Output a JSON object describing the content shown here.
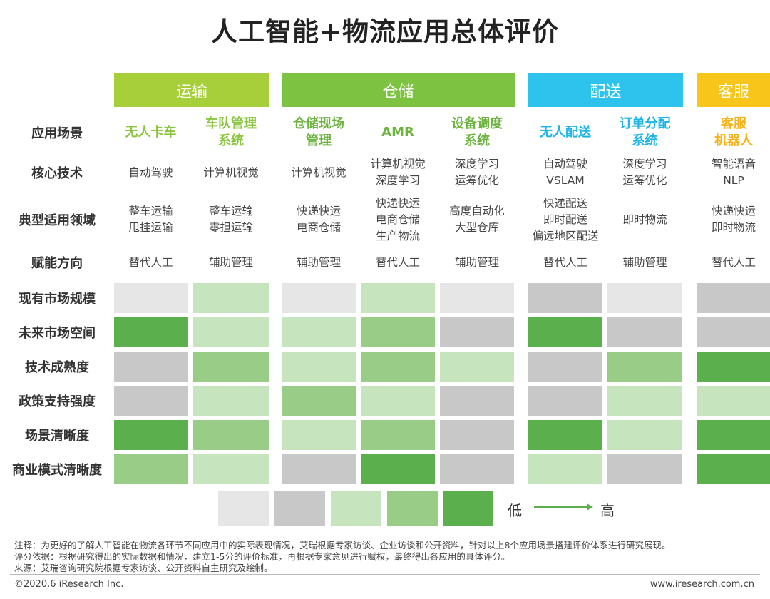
{
  "title": "人工智能+物流应用总体评价",
  "groups": [
    {
      "label": "运输",
      "color": "#a6cf3a"
    },
    {
      "label": "仓储",
      "color": "#7dc241"
    },
    {
      "label": "配送",
      "color": "#2dc3ec"
    },
    {
      "label": "客服",
      "color": "#f8c51a"
    }
  ],
  "row_labels": {
    "scenario": "应用场景",
    "tech": "核心技术",
    "domain": "典型适用领域",
    "direction": "赋能方向"
  },
  "scenarios": [
    {
      "name": [
        "无人卡车"
      ],
      "tech": [
        "自动驾驶"
      ],
      "domain": [
        "整车运输",
        "甩挂运输"
      ],
      "direction": "替代人工",
      "color": "#8bc53f"
    },
    {
      "name": [
        "车队管理",
        "系统"
      ],
      "tech": [
        "计算机视觉"
      ],
      "domain": [
        "整车运输",
        "零担运输"
      ],
      "direction": "辅助管理",
      "color": "#8bc53f"
    },
    {
      "name": [
        "仓储现场",
        "管理"
      ],
      "tech": [
        "计算机视觉"
      ],
      "domain": [
        "快递快运",
        "电商仓储"
      ],
      "direction": "辅助管理",
      "color": "#6cb33f"
    },
    {
      "name": [
        "AMR"
      ],
      "tech": [
        "计算机视觉",
        "深度学习"
      ],
      "domain": [
        "快递快运",
        "电商仓储",
        "生产物流"
      ],
      "direction": "替代人工",
      "color": "#6cb33f"
    },
    {
      "name": [
        "设备调度",
        "系统"
      ],
      "tech": [
        "深度学习",
        "运筹优化"
      ],
      "domain": [
        "高度自动化",
        "大型仓库"
      ],
      "direction": "辅助管理",
      "color": "#6cb33f"
    },
    {
      "name": [
        "无人配送"
      ],
      "tech": [
        "自动驾驶",
        "VSLAM"
      ],
      "domain": [
        "快递配送",
        "即时配送",
        "偏远地区配送"
      ],
      "direction": "替代人工",
      "color": "#1db4e6"
    },
    {
      "name": [
        "订单分配",
        "系统"
      ],
      "tech": [
        "深度学习",
        "运筹优化"
      ],
      "domain": [
        "即时物流"
      ],
      "direction": "辅助管理",
      "color": "#1db4e6"
    },
    {
      "name": [
        "客服",
        "机器人"
      ],
      "tech": [
        "智能语音",
        "NLP"
      ],
      "domain": [
        "快递快运",
        "即时物流"
      ],
      "direction": "替代人工",
      "color": "#f5b31a"
    }
  ],
  "chart_data": {
    "type": "heatmap",
    "title": "人工智能+物流应用总体评价",
    "columns": [
      "无人卡车",
      "车队管理系统",
      "仓储现场管理",
      "AMR",
      "设备调度系统",
      "无人配送",
      "订单分配系统",
      "客服机器人"
    ],
    "rows": [
      "现有市场规模",
      "未来市场空间",
      "技术成熟度",
      "政策支持强度",
      "场景清晰度",
      "商业模式清晰度"
    ],
    "values": [
      [
        1,
        3,
        1,
        3,
        1,
        2,
        1,
        2
      ],
      [
        5,
        3,
        3,
        4,
        2,
        5,
        2,
        2
      ],
      [
        2,
        4,
        3,
        4,
        3,
        2,
        4,
        5
      ],
      [
        2,
        3,
        4,
        3,
        2,
        2,
        3,
        3
      ],
      [
        5,
        4,
        3,
        4,
        2,
        5,
        3,
        5
      ],
      [
        4,
        3,
        2,
        5,
        2,
        3,
        2,
        5
      ]
    ],
    "scale": [
      1,
      5
    ],
    "palette": [
      "#e6e6e6",
      "#c8c8c8",
      "#c6e5bf",
      "#99cc86",
      "#5bb04d"
    ],
    "legend": {
      "low": "低",
      "high": "高"
    }
  },
  "notes": [
    "注释：为更好的了解人工智能在物流各环节不同应用中的实际表现情况，艾瑞根据专家访谈、企业访谈和公开资料，针对以上8个应用场景搭建评价体系进行研究展现。",
    "评分依据：根据研究得出的实际数据和情况，建立1-5分的评价标准，再根据专家意见进行赋权，最终得出各应用的具体评分。",
    "来源：艾瑞咨询研究院根据专家访谈、公开资料自主研究及绘制。"
  ],
  "footer": {
    "copyright": "©2020.6 iResearch Inc.",
    "site": "www.iresearch.com.cn"
  }
}
